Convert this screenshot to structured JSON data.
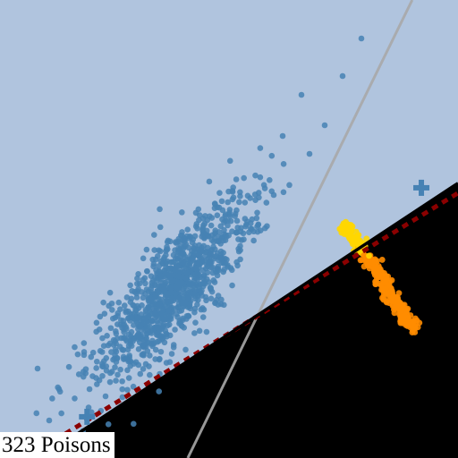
{
  "label": "323 Poisons",
  "chart_data": {
    "type": "scatter",
    "title": "",
    "xlabel": "",
    "ylabel": "",
    "xlim": [
      0,
      1
    ],
    "ylim": [
      0,
      1
    ],
    "grid": false,
    "legend": "none",
    "colors": {
      "background": "#b0c4de",
      "region_negative": "#ff0000",
      "clean_points": "#4682b4",
      "poison_points": "#ff8c00",
      "poison_points_alt": "#ffd700",
      "decision_boundary": "#000000",
      "shifted_boundary": "#8b0000",
      "reference_line": "#a9a9a9"
    },
    "decision_boundary": {
      "x": [
        0.18,
        1.0
      ],
      "y": [
        0.06,
        0.6
      ]
    },
    "reference_line": {
      "x": [
        0.41,
        0.9
      ],
      "y": [
        0.0,
        1.0
      ]
    },
    "class_centers": {
      "x": [
        0.19,
        0.92
      ],
      "y": [
        0.09,
        0.59
      ]
    },
    "clean_cluster": {
      "count": 1100,
      "center": [
        0.38,
        0.37
      ],
      "x": [
        0.09,
        0.8
      ],
      "y": [
        0.08,
        0.92
      ]
    },
    "poison_cluster": {
      "count": 323,
      "x": [
        0.74,
        0.92
      ],
      "y": [
        0.27,
        0.54
      ]
    }
  }
}
